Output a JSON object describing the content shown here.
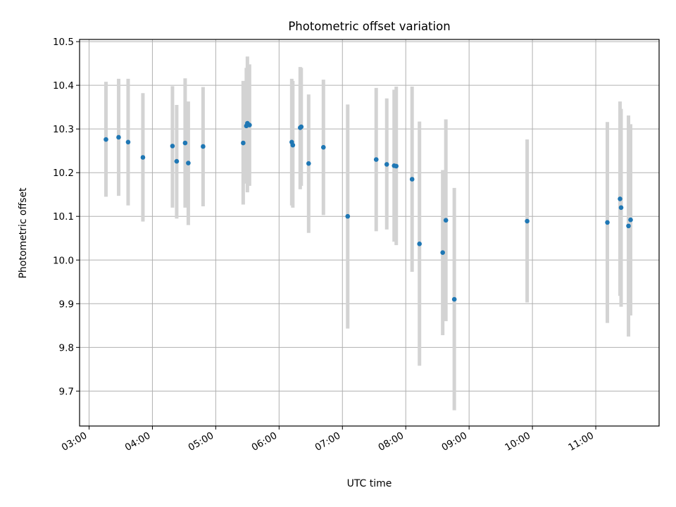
{
  "chart_data": {
    "type": "scatter",
    "title": "Photometric offset variation",
    "xlabel": "UTC time",
    "ylabel": "Photometric offset",
    "xlim": [
      "02:51",
      "12:00"
    ],
    "ylim": [
      9.62,
      10.505
    ],
    "grid": true,
    "x_tick_labels": [
      "03:00",
      "04:00",
      "05:00",
      "06:00",
      "07:00",
      "08:00",
      "09:00",
      "10:00",
      "11:00"
    ],
    "y_ticks": [
      9.7,
      9.8,
      9.9,
      10.0,
      10.1,
      10.2,
      10.3,
      10.4,
      10.5
    ],
    "y_tick_labels": [
      "9.7",
      "9.8",
      "9.9",
      "10.0",
      "10.1",
      "10.2",
      "10.3",
      "10.4",
      "10.5"
    ],
    "colors": {
      "point": "#1f77b4",
      "errorbar": "#d3d3d3",
      "grid": "#b0b0b0"
    },
    "points": [
      {
        "time": "03:16",
        "y": 10.276,
        "err_low": 10.145,
        "err_high": 10.408
      },
      {
        "time": "03:28",
        "y": 10.281,
        "err_low": 10.147,
        "err_high": 10.415
      },
      {
        "time": "03:37",
        "y": 10.27,
        "err_low": 10.125,
        "err_high": 10.415
      },
      {
        "time": "03:51",
        "y": 10.235,
        "err_low": 10.088,
        "err_high": 10.382
      },
      {
        "time": "04:19",
        "y": 10.261,
        "err_low": 10.12,
        "err_high": 10.398
      },
      {
        "time": "04:23",
        "y": 10.226,
        "err_low": 10.095,
        "err_high": 10.355
      },
      {
        "time": "04:31",
        "y": 10.268,
        "err_low": 10.12,
        "err_high": 10.416
      },
      {
        "time": "04:34",
        "y": 10.222,
        "err_low": 10.08,
        "err_high": 10.363
      },
      {
        "time": "04:48",
        "y": 10.26,
        "err_low": 10.123,
        "err_high": 10.396
      },
      {
        "time": "05:26",
        "y": 10.268,
        "err_low": 10.127,
        "err_high": 10.41
      },
      {
        "time": "05:29",
        "y": 10.307,
        "err_low": 10.175,
        "err_high": 10.44
      },
      {
        "time": "05:30",
        "y": 10.313,
        "err_low": 10.155,
        "err_high": 10.466
      },
      {
        "time": "05:32",
        "y": 10.309,
        "err_low": 10.17,
        "err_high": 10.448
      },
      {
        "time": "06:12",
        "y": 10.27,
        "err_low": 10.125,
        "err_high": 10.415
      },
      {
        "time": "06:13",
        "y": 10.263,
        "err_low": 10.12,
        "err_high": 10.41
      },
      {
        "time": "06:20",
        "y": 10.303,
        "err_low": 10.162,
        "err_high": 10.442
      },
      {
        "time": "06:21",
        "y": 10.305,
        "err_low": 10.17,
        "err_high": 10.44
      },
      {
        "time": "06:28",
        "y": 10.221,
        "err_low": 10.062,
        "err_high": 10.379
      },
      {
        "time": "06:42",
        "y": 10.258,
        "err_low": 10.103,
        "err_high": 10.413
      },
      {
        "time": "07:05",
        "y": 10.1,
        "err_low": 9.843,
        "err_high": 10.356
      },
      {
        "time": "07:32",
        "y": 10.23,
        "err_low": 10.066,
        "err_high": 10.394
      },
      {
        "time": "07:42",
        "y": 10.219,
        "err_low": 10.07,
        "err_high": 10.37
      },
      {
        "time": "07:49",
        "y": 10.216,
        "err_low": 10.042,
        "err_high": 10.39
      },
      {
        "time": "07:51",
        "y": 10.215,
        "err_low": 10.034,
        "err_high": 10.397
      },
      {
        "time": "08:06",
        "y": 10.185,
        "err_low": 9.973,
        "err_high": 10.397
      },
      {
        "time": "08:13",
        "y": 10.037,
        "err_low": 9.758,
        "err_high": 10.317
      },
      {
        "time": "08:35",
        "y": 10.017,
        "err_low": 9.828,
        "err_high": 10.206
      },
      {
        "time": "08:38",
        "y": 10.091,
        "err_low": 9.86,
        "err_high": 10.322
      },
      {
        "time": "08:46",
        "y": 9.91,
        "err_low": 9.656,
        "err_high": 10.165
      },
      {
        "time": "09:55",
        "y": 10.089,
        "err_low": 9.903,
        "err_high": 10.276
      },
      {
        "time": "11:11",
        "y": 10.086,
        "err_low": 9.856,
        "err_high": 10.316
      },
      {
        "time": "11:23",
        "y": 10.14,
        "err_low": 9.918,
        "err_high": 10.363
      },
      {
        "time": "11:24",
        "y": 10.12,
        "err_low": 9.893,
        "err_high": 10.346
      },
      {
        "time": "11:31",
        "y": 10.078,
        "err_low": 9.825,
        "err_high": 10.331
      },
      {
        "time": "11:33",
        "y": 10.092,
        "err_low": 9.873,
        "err_high": 10.311
      }
    ]
  }
}
